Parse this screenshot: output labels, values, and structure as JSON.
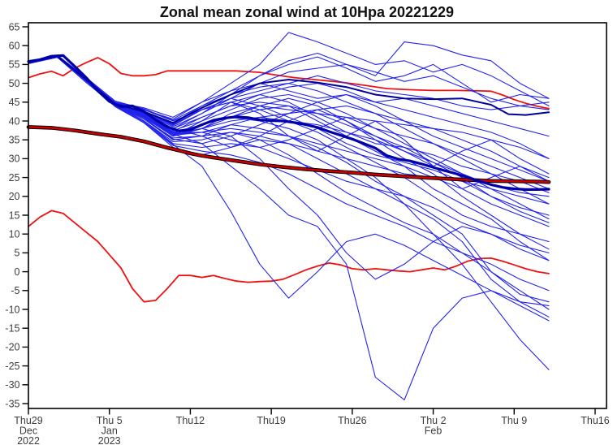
{
  "title": "Zonal mean zonal wind at 10Hpa 20221229",
  "chart_data": {
    "type": "line",
    "title": "Zonal mean zonal wind at 10Hpa 20221229",
    "subtitle": "",
    "legend": "none",
    "grid": "off",
    "x_axis": {
      "unit": "days since 2022-12-29",
      "day_min": 0,
      "day_max": 50,
      "last_labeled_day": 49,
      "ticks": [
        {
          "day": 0,
          "labels": [
            "Thu29",
            "Dec",
            "2022"
          ]
        },
        {
          "day": 7,
          "labels": [
            "Thu 5",
            "Jan",
            "2023"
          ]
        },
        {
          "day": 14,
          "labels": [
            "Thu12"
          ]
        },
        {
          "day": 21,
          "labels": [
            "Thu19"
          ]
        },
        {
          "day": 28,
          "labels": [
            "Thu26"
          ]
        },
        {
          "day": 35,
          "labels": [
            "Thu 2",
            "Feb"
          ]
        },
        {
          "day": 42,
          "labels": [
            "Thu 9"
          ]
        },
        {
          "day": 49,
          "labels": [
            "Thu16"
          ]
        }
      ]
    },
    "y_axis": {
      "min": -35,
      "max": 65,
      "tick_step": 5,
      "label": ""
    },
    "styles": {
      "member": {
        "color": "#2222ee",
        "width": 1.1
      },
      "ensemble_mean": {
        "color": "#0000a8",
        "width": 3.2
      },
      "control": {
        "color": "#000099",
        "width": 2.0
      },
      "climate_band": {
        "color": "#ee1111",
        "width": 1.8
      },
      "climate_mean": {
        "color": "#cc0000",
        "width": 2.6,
        "outline": "#000000",
        "outline_width": 4.6
      }
    },
    "main_series": [
      {
        "name": "climate-upper",
        "role": "climate_band",
        "x": [
          0,
          1,
          2,
          3,
          4,
          5,
          6,
          7,
          8,
          9,
          10,
          11,
          12,
          14,
          16,
          18,
          20,
          21,
          23,
          25,
          27,
          29,
          31,
          33,
          35,
          37,
          39,
          40,
          41,
          42,
          43,
          44,
          45
        ],
        "y": [
          51.5,
          52.5,
          53.2,
          52,
          54,
          55.5,
          56.8,
          55.2,
          52.6,
          52,
          52,
          52.3,
          53.3,
          53.3,
          53.3,
          53.3,
          52.9,
          52.4,
          51.5,
          50.9,
          50.3,
          49.5,
          48.6,
          48.3,
          48.1,
          48.1,
          48,
          47.9,
          46.9,
          45.7,
          44.7,
          43.9,
          43.3
        ]
      },
      {
        "name": "climate-lower",
        "role": "climate_band",
        "x": [
          0,
          1,
          2,
          3,
          4,
          5,
          6,
          7,
          8,
          9,
          10,
          11,
          12,
          13,
          14,
          15,
          16,
          17,
          18,
          19,
          20,
          21,
          22,
          23,
          24,
          25,
          26,
          27,
          28,
          29,
          30,
          31,
          32,
          33,
          34,
          35,
          36,
          37,
          38,
          39,
          40,
          41,
          42,
          43,
          44,
          45
        ],
        "y": [
          12,
          14.5,
          16.2,
          15.5,
          13,
          10.5,
          8,
          4.5,
          1,
          -4.5,
          -8,
          -7.6,
          -4.5,
          -1,
          -1,
          -1.5,
          -1,
          -1.8,
          -2.5,
          -2.8,
          -2.6,
          -2.5,
          -2,
          -0.8,
          0.5,
          1.5,
          2.3,
          1.8,
          0.8,
          0.5,
          0.8,
          0.5,
          0.2,
          0,
          0.5,
          1,
          0.5,
          1.5,
          2.8,
          3.5,
          3.6,
          2.8,
          1.8,
          0.8,
          0,
          -0.5
        ]
      },
      {
        "name": "climate-mean",
        "role": "climate_mean",
        "x": [
          0,
          2,
          4,
          6,
          8,
          10,
          12,
          13,
          14,
          15,
          16,
          18,
          20,
          22,
          24,
          26,
          28,
          30,
          32,
          34,
          36,
          38,
          40,
          42,
          44,
          45
        ],
        "y": [
          38.4,
          38.2,
          37.5,
          36.6,
          35.8,
          34.6,
          32.9,
          32.2,
          31.4,
          30.8,
          30.3,
          29.4,
          28.5,
          27.8,
          27.2,
          26.7,
          26.3,
          25.8,
          25.4,
          25,
          24.7,
          24.4,
          24.1,
          24,
          23.9,
          23.8
        ]
      },
      {
        "name": "control-forecast",
        "role": "control",
        "x": [
          0,
          2.5,
          5,
          7.5,
          10,
          12.5,
          15,
          17.5,
          20,
          22.5,
          25,
          27.5,
          30,
          32.5,
          35,
          37.5,
          40,
          41.5,
          43,
          45
        ],
        "y": [
          55.5,
          57.2,
          51,
          44.5,
          42.5,
          39.5,
          43.5,
          47,
          50,
          51,
          50.2,
          49,
          47,
          46,
          45.8,
          46,
          44.3,
          41.8,
          41.6,
          42.3
        ]
      },
      {
        "name": "ensemble-mean",
        "role": "ensemble_mean",
        "x": [
          0,
          1,
          2,
          3,
          4,
          5,
          6,
          7,
          8,
          9,
          10,
          11,
          12,
          13,
          14,
          15,
          16,
          17,
          18,
          19,
          20,
          21,
          22,
          23,
          24,
          25,
          26,
          27,
          28,
          29,
          30,
          31,
          32,
          33,
          34,
          35,
          36,
          37,
          38,
          39,
          40,
          41,
          42,
          43,
          44,
          45
        ],
        "y": [
          55.8,
          56.3,
          57.2,
          57.4,
          54.5,
          51.5,
          48,
          45.2,
          43.8,
          44,
          42.5,
          40.3,
          38.5,
          37.4,
          37.7,
          39,
          40.2,
          40.8,
          41.1,
          40.9,
          40.3,
          40.1,
          40,
          39.6,
          39,
          38.3,
          37.2,
          36.2,
          35.2,
          34,
          32.8,
          30.8,
          29.9,
          29.4,
          28.6,
          27.7,
          26.8,
          26,
          25,
          24,
          23.1,
          22.4,
          22,
          21.8,
          21.8,
          21.9
        ]
      }
    ],
    "member_days": [
      0,
      2.5,
      5,
      7.5,
      10,
      12.5,
      15,
      17.5,
      20,
      22.5,
      25,
      27.5,
      30,
      32.5,
      35,
      37.5,
      40,
      42.5,
      45
    ],
    "members": [
      [
        55.2,
        56.9,
        50.2,
        44,
        42,
        38,
        42,
        46,
        50,
        53,
        54,
        55,
        53,
        50.5,
        52,
        49,
        46,
        44,
        43
      ],
      [
        55.8,
        57.5,
        51.5,
        45.3,
        43.2,
        40.2,
        44,
        48,
        52,
        55,
        57,
        54,
        50.5,
        52,
        55,
        50,
        45,
        47,
        46
      ],
      [
        55.5,
        57,
        51,
        45,
        43.5,
        41,
        45,
        50,
        55,
        63.5,
        61,
        58,
        55,
        56,
        53,
        55,
        52,
        48,
        44
      ],
      [
        55.3,
        57.1,
        50.5,
        44.5,
        42.5,
        39,
        43,
        45,
        47,
        49,
        50,
        48,
        45,
        46,
        44,
        42,
        40,
        38,
        36
      ],
      [
        55.6,
        57.3,
        51,
        44.6,
        41,
        36,
        38,
        42,
        44,
        43,
        42,
        41,
        40,
        39,
        38,
        37,
        35,
        33,
        30
      ],
      [
        55.4,
        57,
        50.8,
        44.2,
        40.5,
        35,
        36,
        39,
        41,
        42,
        43,
        44,
        42,
        40,
        38,
        35,
        32,
        28,
        25
      ],
      [
        55.7,
        57.4,
        51.2,
        44.9,
        41.5,
        36.5,
        37,
        38,
        37,
        36,
        34,
        32,
        30,
        28,
        25,
        22,
        18,
        15,
        12
      ],
      [
        55.5,
        57.2,
        51,
        44.4,
        40,
        34,
        33,
        34,
        33,
        30,
        27,
        24,
        22,
        20,
        17,
        13,
        10,
        7,
        5
      ],
      [
        55.3,
        56.9,
        50.6,
        43.8,
        39.5,
        33.5,
        32,
        31,
        29,
        26,
        22,
        18,
        15,
        12,
        8,
        5,
        2,
        -2,
        -5
      ],
      [
        55.6,
        57.1,
        51,
        44.3,
        40.5,
        35.5,
        36,
        37,
        35,
        31,
        26,
        21,
        17,
        13,
        10,
        5,
        0,
        -5,
        -10
      ],
      [
        55.4,
        57,
        50.9,
        44.6,
        41,
        36,
        38,
        36,
        30,
        22,
        15,
        5,
        -2,
        2,
        8,
        12,
        10,
        6,
        3
      ],
      [
        55.5,
        57.2,
        51,
        44.5,
        41,
        36.5,
        34,
        28,
        22,
        15,
        12,
        2,
        -28,
        -34,
        -15,
        -7,
        -5,
        -8,
        -9
      ],
      [
        55.5,
        57.3,
        51.1,
        44.7,
        41.5,
        37,
        39,
        41,
        40,
        38,
        35,
        30,
        25,
        18,
        10,
        2,
        -8,
        -18,
        -26
      ],
      [
        55.4,
        57.1,
        50.7,
        44.1,
        40,
        34.5,
        35,
        37,
        36,
        34,
        30,
        26,
        22,
        18,
        14,
        8,
        -2,
        -8,
        -12
      ],
      [
        55.6,
        57.2,
        51,
        44.5,
        42,
        38,
        41,
        44,
        45,
        44,
        40,
        36,
        32,
        28,
        22,
        18,
        14,
        8,
        3
      ],
      [
        55.5,
        57,
        50.9,
        44.3,
        42.5,
        39.5,
        44,
        47,
        49,
        50,
        48,
        45,
        42,
        38,
        34,
        30,
        26,
        22,
        18
      ],
      [
        55.3,
        57.2,
        51,
        44.8,
        43,
        40.5,
        45,
        48,
        50,
        48,
        46,
        47,
        45,
        43,
        41,
        39,
        37,
        34,
        30
      ],
      [
        55.7,
        57.4,
        51.3,
        45,
        43,
        40,
        43,
        46,
        48,
        50,
        52,
        50,
        48,
        47,
        46,
        44,
        43,
        44,
        45
      ],
      [
        55.5,
        57.1,
        51,
        44.6,
        42,
        38.5,
        42,
        47,
        52,
        56,
        58,
        55,
        52,
        61,
        60,
        57.5,
        56,
        50,
        46
      ],
      [
        55.4,
        57,
        50.8,
        44.2,
        41,
        36,
        38,
        40,
        41,
        40,
        39,
        37,
        35,
        32,
        29,
        26,
        23,
        21,
        20
      ],
      [
        55.6,
        57.3,
        51.2,
        44.8,
        41.5,
        36.8,
        39,
        41,
        43,
        44,
        42,
        39,
        36,
        33,
        29,
        25,
        20,
        17,
        15
      ],
      [
        55.5,
        57.2,
        51,
        44,
        39.5,
        33,
        31,
        33,
        35,
        34,
        32,
        30,
        28,
        26,
        25,
        24,
        22,
        20,
        18
      ],
      [
        55.4,
        57.1,
        51,
        44.5,
        41,
        36,
        40,
        45,
        42,
        36,
        32,
        36,
        40,
        35,
        28,
        22,
        25,
        28,
        24
      ],
      [
        55.6,
        57.2,
        51,
        44.6,
        42,
        38,
        36,
        33,
        36,
        40,
        43,
        40,
        36,
        32,
        28,
        32,
        35,
        30,
        26
      ],
      [
        55.5,
        57.1,
        50.9,
        44.4,
        41,
        36.2,
        37,
        39,
        38,
        36,
        33,
        29,
        24,
        20,
        15,
        10,
        0,
        -6,
        -8
      ],
      [
        55.5,
        57.2,
        51,
        44.5,
        41.2,
        36.6,
        38,
        41,
        44,
        46,
        44,
        40,
        35,
        30,
        26,
        20,
        15,
        10,
        8
      ],
      [
        55.4,
        57,
        51,
        44.7,
        42.2,
        38.8,
        43,
        46,
        44,
        41,
        38,
        34,
        31,
        29,
        27,
        24,
        20,
        16,
        13
      ],
      [
        55.6,
        57.3,
        51.1,
        44.3,
        40.8,
        35.2,
        34,
        36,
        39,
        42,
        45,
        47,
        44,
        40,
        36,
        33,
        30,
        27,
        24
      ],
      [
        55.5,
        57.1,
        50.8,
        44.5,
        41.8,
        37.5,
        40,
        43,
        46,
        47,
        45,
        42,
        38,
        36,
        34,
        31,
        28,
        25,
        22
      ],
      [
        55.4,
        57.2,
        51,
        44.6,
        41.3,
        36.9,
        37,
        35,
        33,
        35,
        38,
        41,
        38,
        34,
        30,
        26,
        22,
        18,
        14
      ],
      [
        55.6,
        57.1,
        51,
        44.4,
        41.6,
        37.2,
        41,
        44,
        47,
        45,
        41,
        37,
        34,
        33,
        31,
        28,
        26,
        24,
        21
      ],
      [
        55.5,
        57.3,
        51.2,
        44.9,
        42.4,
        39.2,
        43,
        45,
        43,
        40,
        37,
        33,
        29,
        25,
        20,
        15,
        12,
        10,
        6
      ],
      [
        55.5,
        57.1,
        50.9,
        44.2,
        39.8,
        33.8,
        28,
        16,
        2,
        -7,
        0,
        8,
        10,
        7,
        3,
        -1,
        -5,
        -9,
        -13
      ]
    ]
  }
}
